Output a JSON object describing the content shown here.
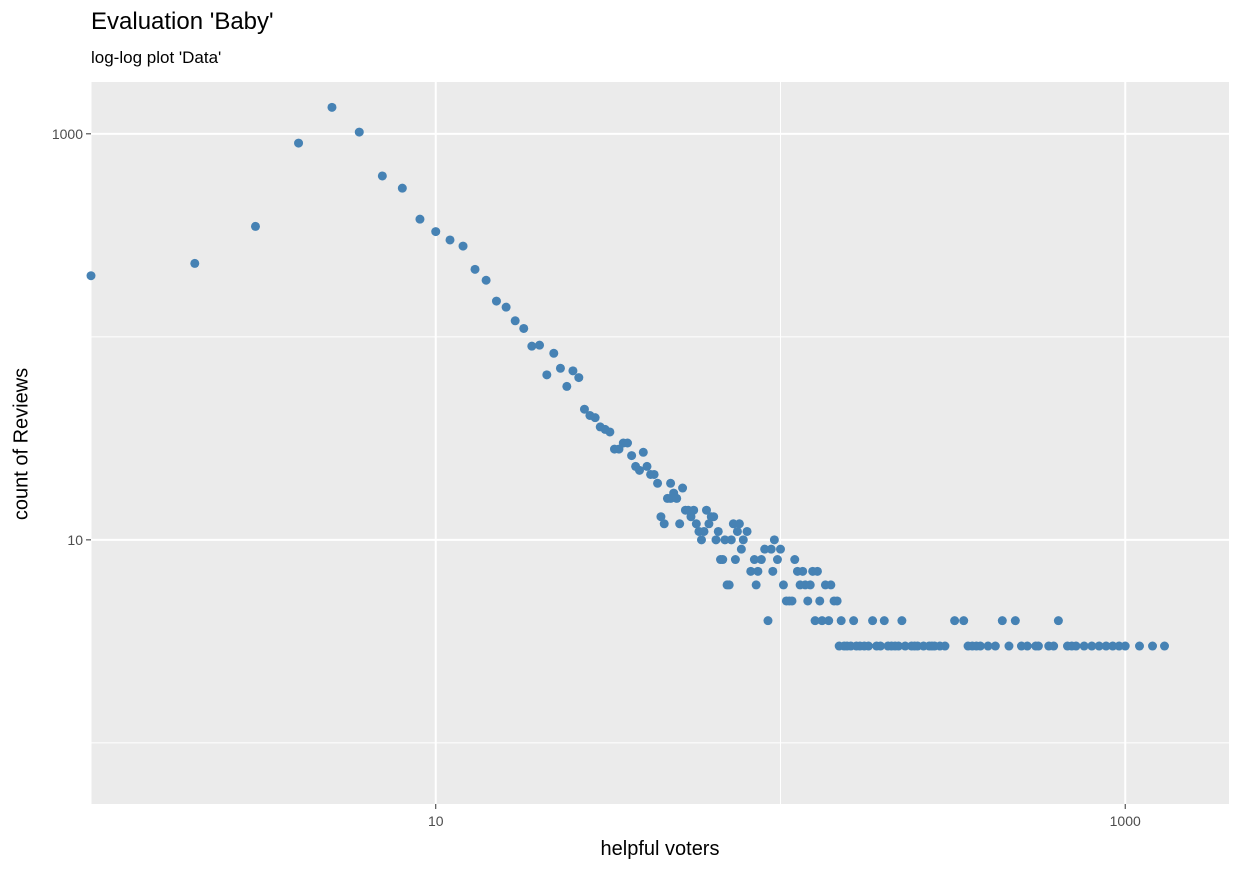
{
  "chart_data": {
    "type": "scatter",
    "title": "Evaluation 'Baby'",
    "subtitle": "log-log plot 'Data'",
    "xlabel": "helpful voters",
    "ylabel": "count of Reviews",
    "x_scale": "log10",
    "y_scale": "log10",
    "xlim": [
      1,
      2000
    ],
    "ylim": [
      0.5,
      1800
    ],
    "x_ticks": [
      10,
      1000
    ],
    "x_tick_labels": [
      "10",
      "1000"
    ],
    "y_ticks": [
      10,
      1000
    ],
    "y_tick_labels": [
      "10",
      "1000"
    ],
    "grid": true,
    "legend": "none",
    "point_color": "#4682b4",
    "background": "#ebebeb",
    "points": [
      [
        1,
        200
      ],
      [
        2,
        230
      ],
      [
        3,
        350
      ],
      [
        4,
        900
      ],
      [
        5,
        1350
      ],
      [
        6,
        1020
      ],
      [
        7,
        620
      ],
      [
        8,
        540
      ],
      [
        9,
        380
      ],
      [
        10,
        330
      ],
      [
        11,
        300
      ],
      [
        12,
        280
      ],
      [
        13,
        215
      ],
      [
        14,
        190
      ],
      [
        15,
        150
      ],
      [
        16,
        140
      ],
      [
        17,
        120
      ],
      [
        18,
        110
      ],
      [
        19,
        90
      ],
      [
        20,
        91
      ],
      [
        21,
        65
      ],
      [
        22,
        83
      ],
      [
        23,
        70
      ],
      [
        24,
        57
      ],
      [
        25,
        68
      ],
      [
        26,
        63
      ],
      [
        27,
        44
      ],
      [
        28,
        41
      ],
      [
        29,
        40
      ],
      [
        30,
        36
      ],
      [
        31,
        35
      ],
      [
        32,
        34
      ],
      [
        33,
        28
      ],
      [
        34,
        28
      ],
      [
        35,
        30
      ],
      [
        36,
        30
      ],
      [
        37,
        26
      ],
      [
        38,
        23
      ],
      [
        39,
        22
      ],
      [
        40,
        27
      ],
      [
        41,
        23
      ],
      [
        42,
        21
      ],
      [
        43,
        21
      ],
      [
        44,
        19
      ],
      [
        45,
        13
      ],
      [
        46,
        12
      ],
      [
        47,
        16
      ],
      [
        48,
        19
      ],
      [
        48,
        16
      ],
      [
        49,
        17
      ],
      [
        50,
        16
      ],
      [
        51,
        12
      ],
      [
        52,
        18
      ],
      [
        53,
        14
      ],
      [
        54,
        14
      ],
      [
        55,
        13
      ],
      [
        56,
        14
      ],
      [
        57,
        12
      ],
      [
        58,
        11
      ],
      [
        59,
        10
      ],
      [
        60,
        11
      ],
      [
        61,
        14
      ],
      [
        62,
        12
      ],
      [
        63,
        13
      ],
      [
        64,
        13
      ],
      [
        65,
        10
      ],
      [
        66,
        11
      ],
      [
        67,
        8
      ],
      [
        68,
        8
      ],
      [
        69,
        10
      ],
      [
        70,
        6
      ],
      [
        71,
        6
      ],
      [
        72,
        10
      ],
      [
        73,
        12
      ],
      [
        74,
        8
      ],
      [
        75,
        11
      ],
      [
        76,
        12
      ],
      [
        77,
        9
      ],
      [
        78,
        10
      ],
      [
        80,
        11
      ],
      [
        82,
        7
      ],
      [
        84,
        8
      ],
      [
        85,
        6
      ],
      [
        86,
        7
      ],
      [
        88,
        8
      ],
      [
        90,
        9
      ],
      [
        92,
        4
      ],
      [
        94,
        9
      ],
      [
        95,
        7
      ],
      [
        96,
        10
      ],
      [
        98,
        8
      ],
      [
        100,
        9
      ],
      [
        102,
        6
      ],
      [
        104,
        5
      ],
      [
        106,
        5
      ],
      [
        108,
        5
      ],
      [
        110,
        8
      ],
      [
        112,
        7
      ],
      [
        114,
        6
      ],
      [
        116,
        7
      ],
      [
        118,
        6
      ],
      [
        120,
        5
      ],
      [
        122,
        6
      ],
      [
        124,
        7
      ],
      [
        126,
        4
      ],
      [
        128,
        7
      ],
      [
        130,
        5
      ],
      [
        132,
        4
      ],
      [
        135,
        6
      ],
      [
        138,
        4
      ],
      [
        140,
        6
      ],
      [
        143,
        5
      ],
      [
        146,
        5
      ],
      [
        148,
        3
      ],
      [
        150,
        4
      ],
      [
        153,
        3
      ],
      [
        156,
        3
      ],
      [
        160,
        3
      ],
      [
        163,
        4
      ],
      [
        166,
        3
      ],
      [
        170,
        3
      ],
      [
        175,
        3
      ],
      [
        180,
        3
      ],
      [
        185,
        4
      ],
      [
        190,
        3
      ],
      [
        195,
        3
      ],
      [
        200,
        4
      ],
      [
        205,
        3
      ],
      [
        210,
        3
      ],
      [
        215,
        3
      ],
      [
        220,
        3
      ],
      [
        225,
        4
      ],
      [
        230,
        3
      ],
      [
        240,
        3
      ],
      [
        245,
        3
      ],
      [
        250,
        3
      ],
      [
        260,
        3
      ],
      [
        270,
        3
      ],
      [
        275,
        3
      ],
      [
        280,
        3
      ],
      [
        290,
        3
      ],
      [
        300,
        3
      ],
      [
        320,
        4
      ],
      [
        340,
        4
      ],
      [
        350,
        3
      ],
      [
        360,
        3
      ],
      [
        370,
        3
      ],
      [
        380,
        3
      ],
      [
        400,
        3
      ],
      [
        420,
        3
      ],
      [
        440,
        4
      ],
      [
        460,
        3
      ],
      [
        480,
        4
      ],
      [
        500,
        3
      ],
      [
        520,
        3
      ],
      [
        550,
        3
      ],
      [
        560,
        3
      ],
      [
        600,
        3
      ],
      [
        620,
        3
      ],
      [
        640,
        4
      ],
      [
        680,
        3
      ],
      [
        700,
        3
      ],
      [
        720,
        3
      ],
      [
        760,
        3
      ],
      [
        800,
        3
      ],
      [
        840,
        3
      ],
      [
        880,
        3
      ],
      [
        920,
        3
      ],
      [
        960,
        3
      ],
      [
        1000,
        3
      ],
      [
        1100,
        3
      ],
      [
        1200,
        3
      ],
      [
        1300,
        3
      ]
    ]
  }
}
